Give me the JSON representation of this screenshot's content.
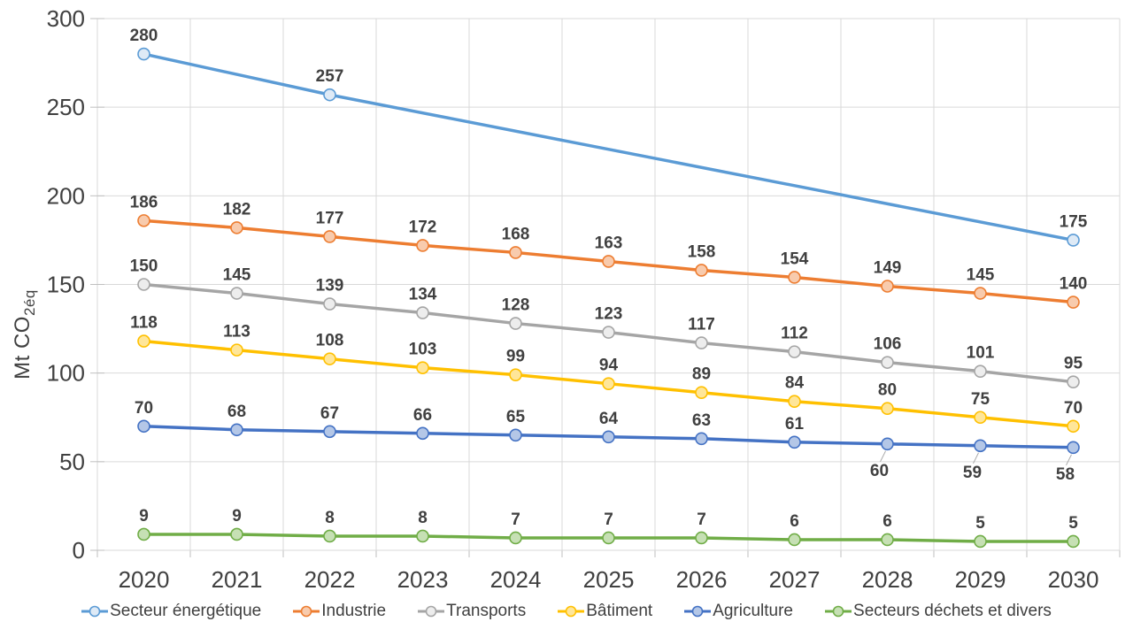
{
  "chart_data": {
    "type": "line",
    "ylabel": {
      "main": "Mt CO",
      "sub": "2éq"
    },
    "ylim": [
      0,
      300
    ],
    "yticks": [
      0,
      50,
      100,
      150,
      200,
      250,
      300
    ],
    "grid": true,
    "legend_position": "bottom",
    "categories": [
      "2020",
      "2021",
      "2022",
      "2023",
      "2024",
      "2025",
      "2026",
      "2027",
      "2028",
      "2029",
      "2030"
    ],
    "series": [
      {
        "name": "Secteur énergétique",
        "color": "#5B9BD5",
        "marker_fill": "#DEEAF6",
        "values": [
          280,
          null,
          257,
          null,
          null,
          null,
          null,
          null,
          null,
          null,
          175
        ],
        "below_label_indexes": []
      },
      {
        "name": "Industrie",
        "color": "#ED7D31",
        "marker_fill": "#F8CBAD",
        "values": [
          186,
          182,
          177,
          172,
          168,
          163,
          158,
          154,
          149,
          145,
          140
        ],
        "below_label_indexes": []
      },
      {
        "name": "Transports",
        "color": "#A5A5A5",
        "marker_fill": "#EDEDED",
        "values": [
          150,
          145,
          139,
          134,
          128,
          123,
          117,
          112,
          106,
          101,
          95
        ],
        "below_label_indexes": []
      },
      {
        "name": "Bâtiment",
        "color": "#FFC000",
        "marker_fill": "#FFE699",
        "values": [
          118,
          113,
          108,
          103,
          99,
          94,
          89,
          84,
          80,
          75,
          70
        ],
        "below_label_indexes": []
      },
      {
        "name": "Agriculture",
        "color": "#4472C4",
        "marker_fill": "#B4C7E7",
        "values": [
          70,
          68,
          67,
          66,
          65,
          64,
          63,
          61,
          60,
          59,
          58
        ],
        "below_label_indexes": [
          8,
          9,
          10
        ]
      },
      {
        "name": "Secteurs déchets et divers",
        "color": "#70AD47",
        "marker_fill": "#C6E0B4",
        "values": [
          9,
          9,
          8,
          8,
          7,
          7,
          7,
          6,
          6,
          5,
          5
        ],
        "below_label_indexes": []
      }
    ],
    "style": {
      "grid_color": "#D9D9D9",
      "tick_color": "#BFBFBF",
      "axis_text_color": "#404040",
      "data_label_color": "#404040",
      "legend_text_color": "#404040",
      "leader_line_color": "#A6A6A6"
    }
  }
}
